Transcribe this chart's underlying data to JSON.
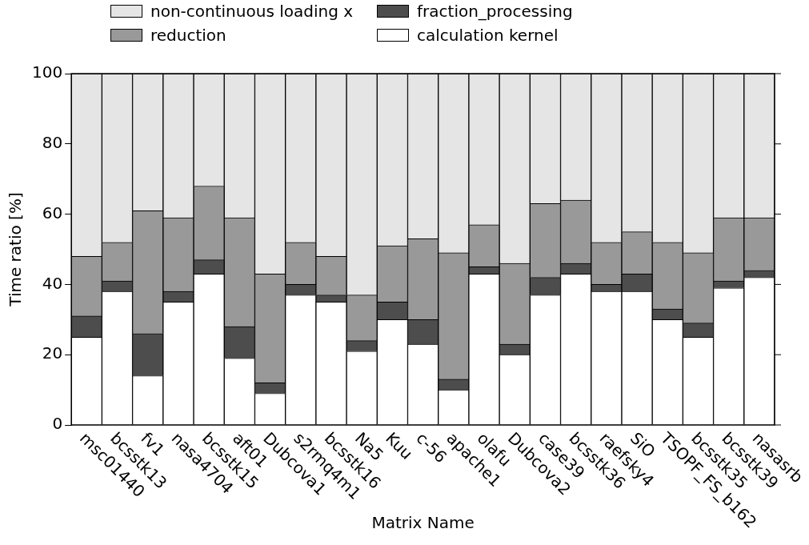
{
  "chart_data": {
    "type": "bar",
    "stacked": true,
    "xlabel": "Matrix Name",
    "ylabel": "Time ratio [%]",
    "categories": [
      "msc01440",
      "bcsstk13",
      "fv1",
      "nasa4704",
      "bcsstk15",
      "aft01",
      "Dubcova1",
      "s2rmq4m1",
      "bcsstk16",
      "Na5",
      "Kuu",
      "c-56",
      "apache1",
      "olafu",
      "Dubcova2",
      "case39",
      "bcsstk36",
      "raefsky4",
      "SiO",
      "TSOPF_FS_b162",
      "bcsstk35",
      "bcsstk39",
      "nasasrb"
    ],
    "series": [
      {
        "name": "calculation kernel",
        "color": "#ffffff",
        "values": [
          25,
          38,
          14,
          35,
          43,
          19,
          9,
          37,
          35,
          21,
          30,
          23,
          10,
          43,
          20,
          37,
          43,
          38,
          38,
          30,
          25,
          39,
          42
        ]
      },
      {
        "name": "fraction_processing",
        "color": "#4d4d4d",
        "values": [
          6,
          3,
          12,
          3,
          4,
          9,
          3,
          3,
          2,
          3,
          5,
          7,
          3,
          2,
          3,
          5,
          3,
          2,
          5,
          3,
          4,
          2,
          2
        ]
      },
      {
        "name": "reduction",
        "color": "#999999",
        "values": [
          17,
          11,
          35,
          21,
          21,
          31,
          31,
          12,
          11,
          13,
          16,
          23,
          36,
          12,
          23,
          21,
          18,
          12,
          12,
          19,
          20,
          18,
          15
        ]
      },
      {
        "name": "non-continuous loading x",
        "color": "#e5e5e5",
        "values": [
          52,
          48,
          39,
          41,
          32,
          41,
          57,
          48,
          52,
          63,
          49,
          47,
          51,
          43,
          54,
          37,
          36,
          48,
          45,
          48,
          51,
          41,
          41
        ]
      }
    ],
    "ylim": [
      0,
      100
    ],
    "yticks": [
      0,
      20,
      40,
      60,
      80,
      100
    ],
    "grid": false,
    "legend": "top"
  }
}
